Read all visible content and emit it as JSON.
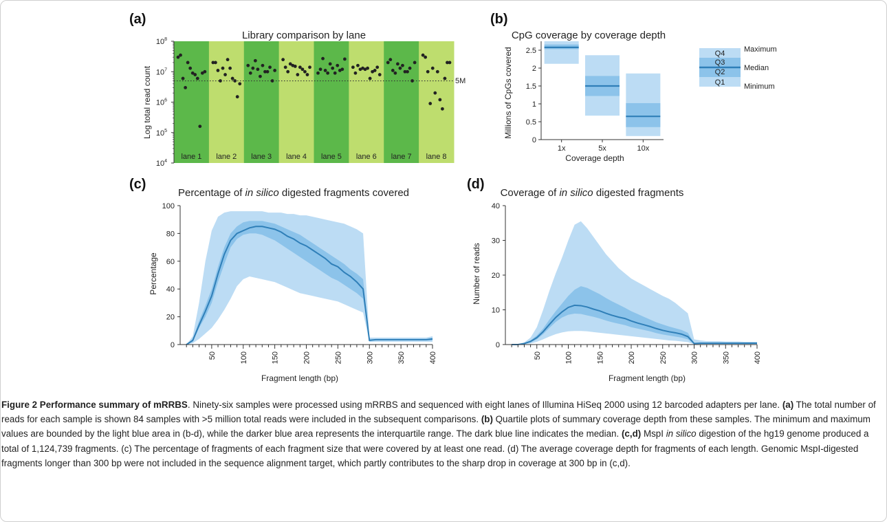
{
  "panels": {
    "a": {
      "letter": "(a)",
      "title": "Library comparison by lane",
      "ylabel": "Log total read count",
      "ref_label": "5M",
      "lanes": [
        "lane 1",
        "lane 2",
        "lane 3",
        "lane 4",
        "lane 5",
        "lane 6",
        "lane 7",
        "lane 8"
      ]
    },
    "b": {
      "letter": "(b)",
      "title": "CpG coverage by coverage depth",
      "ylabel": "Millions of CpGs covered",
      "xlabel": "Coverage depth",
      "legend": {
        "q4": "Q4",
        "q3": "Q3",
        "q2": "Q2",
        "q1": "Q1",
        "max": "Maximum",
        "median": "Median",
        "min": "Minimum"
      }
    },
    "c": {
      "letter": "(c)",
      "title_pre": "Percentage of ",
      "title_em": "in silico",
      "title_post": " digested fragments covered",
      "ylabel": "Percentage",
      "xlabel": "Fragment length (bp)"
    },
    "d": {
      "letter": "(d)",
      "title_pre": "Coverage of ",
      "title_em": "in silico",
      "title_post": " digested fragments",
      "ylabel": "Number of reads",
      "xlabel": "Fragment length (bp)"
    }
  },
  "caption": {
    "fig_label": "Figure 2 Performance summary of mRRBS",
    "s1": ". Ninety-six samples were processed using mRRBS and sequenced with eight lanes of Illumina HiSeq 2000 using 12 barcoded adapters per lane. ",
    "a_label": "(a)",
    "s2": " The total number of reads for each sample is shown 84 samples with >5 million total reads were included in the subsequent comparisons. ",
    "b_label": "(b)",
    "s3": " Quartile plots of summary coverage depth from these samples. The minimum and maximum values are bounded by the light blue area in (b-d), while the darker blue area represents the interquartile range. The dark blue line indicates the median. ",
    "cd_label": "(c,d)",
    "s4a": " MspI ",
    "s4em": "in silico",
    "s4b": " digestion of the hg19 genome produced a total of 1,124,739 fragments. (c) The percentage of fragments of each fragment size that were covered by at least one read. (d) The average coverage depth for fragments of each length. Genomic MspI-digested fragments longer than 300 bp were not included in the sequence alignment target, which partly contributes to the sharp drop in coverage at 300 bp in (c,d)."
  },
  "colors": {
    "lane_dark": "#5cb84a",
    "lane_light": "#bedd6e",
    "band_light": "#bcdcf4",
    "band_mid": "#8cc3ea",
    "median": "#2f7fb8",
    "dot": "#222222"
  },
  "chart_data": [
    {
      "type": "scatter",
      "title": "Library comparison by lane",
      "ylabel": "Log total read count",
      "yscale": "log",
      "ylim": [
        10000,
        100000000
      ],
      "yticks": [
        "10^4",
        "10^5",
        "10^6",
        "10^7",
        "10^8"
      ],
      "categories": [
        "lane 1",
        "lane 2",
        "lane 3",
        "lane 4",
        "lane 5",
        "lane 6",
        "lane 7",
        "lane 8"
      ],
      "reference_line": {
        "value": 5000000,
        "label": "5M"
      },
      "values": [
        [
          30000000,
          35000000,
          6000000,
          3000000,
          20000000,
          13000000,
          9000000,
          8000000,
          6000000,
          160000,
          9000000,
          10000000
        ],
        [
          20000000,
          20000000,
          11000000,
          5000000,
          13000000,
          8000000,
          25000000,
          13000000,
          6000000,
          5000000,
          1500000,
          4000000
        ],
        [
          16000000,
          9000000,
          13000000,
          23000000,
          12000000,
          7000000,
          16000000,
          10000000,
          10000000,
          14000000,
          5000000,
          11000000
        ],
        [
          25000000,
          14000000,
          10000000,
          18000000,
          16000000,
          15000000,
          8000000,
          14000000,
          12000000,
          10000000,
          8000000,
          14000000
        ],
        [
          9000000,
          12000000,
          27000000,
          11000000,
          9000000,
          18000000,
          13000000,
          9000000,
          16000000,
          11000000,
          12000000,
          26000000
        ],
        [
          14000000,
          9000000,
          16000000,
          12000000,
          13000000,
          12000000,
          13000000,
          6000000,
          10000000,
          11000000,
          14000000,
          8000000
        ],
        [
          20000000,
          25000000,
          11000000,
          9000000,
          18000000,
          13000000,
          16000000,
          10000000,
          10000000,
          13000000,
          5000000,
          20000000
        ],
        [
          35000000,
          30000000,
          10000000,
          900000,
          13000000,
          2000000,
          10000000,
          1200000,
          600000,
          6000000,
          20000000,
          20000000
        ]
      ]
    },
    {
      "type": "box",
      "title": "CpG coverage by coverage depth",
      "xlabel": "Coverage depth",
      "ylabel": "Millions of CpGs covered",
      "ylim": [
        0,
        2.75
      ],
      "yticks": [
        0,
        0.5,
        1,
        1.5,
        2,
        2.5
      ],
      "categories": [
        "1x",
        "5x",
        "10x"
      ],
      "min": [
        2.12,
        0.67,
        0.1
      ],
      "q1": [
        2.53,
        1.22,
        0.35
      ],
      "median": [
        2.58,
        1.5,
        0.65
      ],
      "q3": [
        2.66,
        1.78,
        1.02
      ],
      "max": [
        2.75,
        2.36,
        1.85
      ]
    },
    {
      "type": "area",
      "title": "Percentage of in silico digested fragments covered",
      "xlabel": "Fragment length (bp)",
      "ylabel": "Percentage",
      "xlim": [
        0,
        400
      ],
      "ylim": [
        0,
        100
      ],
      "xticks": [
        50,
        100,
        150,
        200,
        250,
        300,
        350,
        400
      ],
      "yticks": [
        0,
        20,
        40,
        60,
        80,
        100
      ],
      "x": [
        10,
        20,
        30,
        40,
        50,
        60,
        70,
        80,
        90,
        100,
        110,
        120,
        130,
        140,
        150,
        160,
        170,
        180,
        190,
        200,
        210,
        220,
        230,
        240,
        250,
        260,
        270,
        280,
        290,
        300,
        310,
        320,
        330,
        340,
        350,
        360,
        370,
        380,
        390,
        400
      ],
      "min": [
        0,
        1,
        4,
        8,
        12,
        18,
        25,
        33,
        42,
        47,
        49,
        48,
        47,
        46,
        45,
        43,
        41,
        39,
        37,
        36,
        35,
        34,
        33,
        32,
        31,
        29,
        27,
        25,
        23,
        2,
        2,
        2,
        2,
        2,
        2,
        2,
        2,
        2,
        2,
        2
      ],
      "q1": [
        0,
        2,
        12,
        20,
        30,
        45,
        58,
        70,
        76,
        79,
        80,
        80,
        79,
        77,
        75,
        72,
        69,
        66,
        63,
        60,
        57,
        54,
        51,
        48,
        46,
        43,
        40,
        37,
        33,
        3,
        3,
        3,
        3,
        3,
        3,
        3,
        3,
        3,
        3,
        3
      ],
      "median": [
        0,
        3,
        14,
        24,
        35,
        51,
        65,
        75,
        80,
        82,
        84,
        85,
        85,
        84,
        83,
        81,
        78,
        76,
        73,
        71,
        68,
        65,
        62,
        58,
        56,
        52,
        49,
        45,
        40,
        3,
        3.5,
        3.5,
        3.5,
        3.5,
        3.5,
        3.5,
        3.5,
        3.5,
        3.5,
        4
      ],
      "q3": [
        0,
        4,
        17,
        28,
        40,
        56,
        70,
        80,
        85,
        88,
        89,
        89,
        89,
        88,
        87,
        85,
        83,
        81,
        79,
        76,
        73,
        70,
        67,
        64,
        61,
        58,
        54,
        51,
        47,
        4,
        4,
        4,
        4,
        4,
        4,
        4,
        4,
        4,
        4,
        5
      ],
      "max": [
        0,
        6,
        30,
        60,
        82,
        92,
        95,
        96,
        96,
        96,
        96,
        96,
        96,
        95,
        95,
        95,
        94,
        94,
        93,
        93,
        92,
        91,
        90,
        89,
        88,
        87,
        85,
        83,
        80,
        5,
        5,
        5,
        5,
        5,
        5,
        5,
        5,
        5,
        5,
        6
      ]
    },
    {
      "type": "area",
      "title": "Coverage of in silico digested fragments",
      "xlabel": "Fragment length (bp)",
      "ylabel": "Number of reads",
      "xlim": [
        0,
        400
      ],
      "ylim": [
        0,
        40
      ],
      "xticks": [
        50,
        100,
        150,
        200,
        250,
        300,
        350,
        400
      ],
      "yticks": [
        0,
        10,
        20,
        30,
        40
      ],
      "x": [
        10,
        20,
        30,
        40,
        50,
        60,
        70,
        80,
        90,
        100,
        110,
        120,
        130,
        140,
        150,
        160,
        170,
        180,
        190,
        200,
        210,
        220,
        230,
        240,
        250,
        260,
        270,
        280,
        290,
        300,
        310,
        320,
        330,
        340,
        350,
        360,
        370,
        380,
        390,
        400
      ],
      "min": [
        0,
        0,
        0.1,
        0.3,
        0.8,
        1.5,
        2.3,
        3.0,
        3.5,
        3.8,
        3.9,
        3.9,
        3.8,
        3.6,
        3.4,
        3.2,
        3.0,
        2.8,
        2.6,
        2.4,
        2.2,
        2.0,
        1.8,
        1.6,
        1.4,
        1.2,
        1.1,
        0.9,
        0.7,
        0.1,
        0.1,
        0.1,
        0.1,
        0.1,
        0.1,
        0.1,
        0.1,
        0.1,
        0.1,
        0.1
      ],
      "q1": [
        0,
        0,
        0.2,
        0.6,
        1.5,
        3.0,
        4.8,
        6.5,
        7.8,
        8.6,
        8.9,
        8.8,
        8.4,
        8.0,
        7.5,
        6.9,
        6.4,
        6.0,
        5.6,
        5.0,
        4.6,
        4.2,
        3.8,
        3.3,
        2.9,
        2.6,
        2.3,
        2.0,
        1.5,
        0.2,
        0.2,
        0.2,
        0.2,
        0.2,
        0.2,
        0.2,
        0.2,
        0.2,
        0.2,
        0.2
      ],
      "median": [
        0,
        0,
        0.3,
        0.9,
        2.0,
        3.7,
        5.8,
        7.8,
        9.4,
        10.7,
        11.3,
        11.2,
        10.8,
        10.2,
        9.7,
        9.0,
        8.4,
        7.9,
        7.5,
        6.8,
        6.2,
        5.7,
        5.2,
        4.6,
        4.1,
        3.7,
        3.4,
        3.0,
        2.3,
        0.3,
        0.4,
        0.4,
        0.4,
        0.4,
        0.4,
        0.4,
        0.4,
        0.4,
        0.4,
        0.4
      ],
      "q3": [
        0,
        0,
        0.4,
        1.2,
        2.6,
        4.6,
        7.2,
        9.6,
        11.8,
        14.0,
        15.8,
        16.8,
        16.3,
        15.4,
        14.5,
        13.4,
        12.4,
        11.5,
        10.6,
        9.6,
        8.8,
        8.0,
        7.2,
        6.4,
        5.8,
        5.2,
        4.7,
        4.2,
        3.4,
        0.5,
        0.5,
        0.5,
        0.5,
        0.5,
        0.5,
        0.5,
        0.5,
        0.5,
        0.5,
        0.5
      ],
      "max": [
        0,
        0.1,
        0.6,
        2.0,
        5.0,
        10.0,
        15.5,
        20.5,
        25.0,
        30.0,
        34.5,
        35.5,
        33.5,
        31.0,
        28.5,
        26.0,
        24.0,
        22.0,
        20.5,
        19.0,
        18.0,
        17.0,
        16.0,
        15.0,
        14.0,
        13.2,
        12.0,
        10.5,
        9.0,
        1.5,
        1.2,
        1.0,
        1.0,
        1.0,
        0.9,
        0.9,
        0.9,
        0.8,
        0.8,
        0.8
      ]
    }
  ]
}
